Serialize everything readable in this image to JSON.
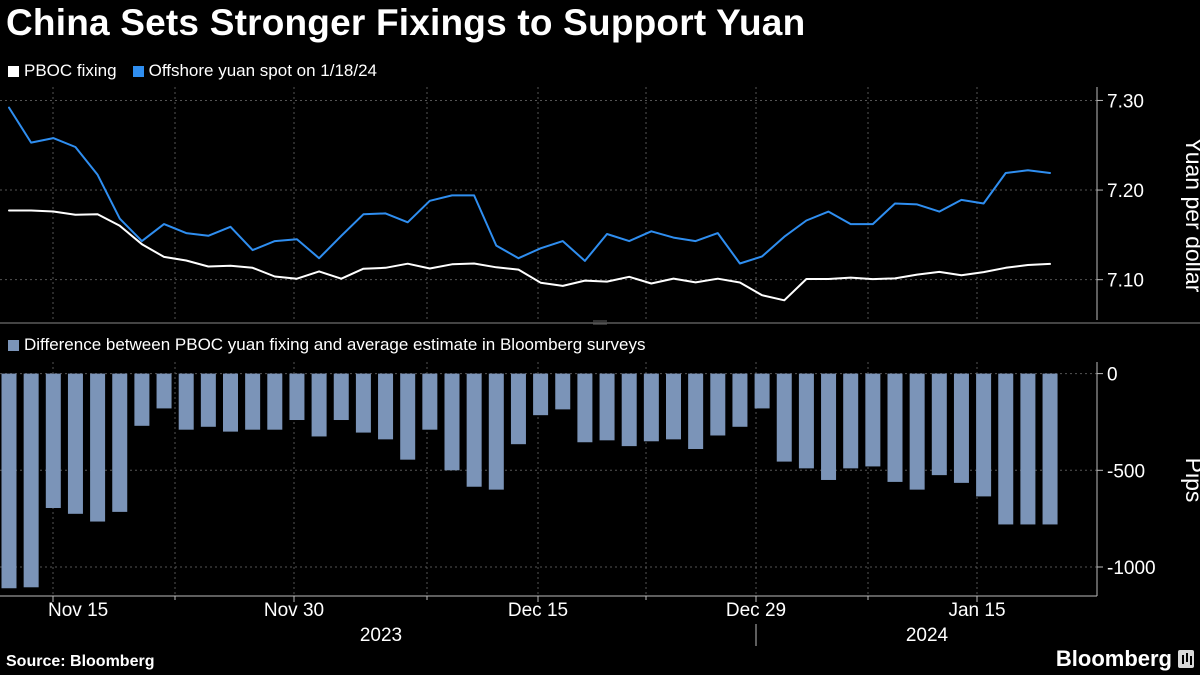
{
  "title": "China Sets Stronger Fixings to Support Yuan",
  "colors": {
    "background": "#000000",
    "pboc_line": "#ffffff",
    "spot_line": "#2f8ef0",
    "bars": "#7b94b8",
    "grid": "#555555",
    "divider": "#444444"
  },
  "chart_data": [
    {
      "type": "line",
      "legend": [
        "PBOC fixing",
        "Offshore yuan spot on 1/18/24"
      ],
      "ylabel": "Yuan per dollar",
      "ylim": [
        7.055,
        7.315
      ],
      "yticks": [
        7.1,
        7.2,
        7.3
      ],
      "ytick_labels": [
        "7.10",
        "7.20",
        "7.30"
      ],
      "x_label": "date",
      "series": [
        {
          "name": "PBOC fixing",
          "color": "#ffffff",
          "values": [
            7.1772,
            7.1772,
            7.1761,
            7.1725,
            7.1731,
            7.1601,
            7.1396,
            7.1254,
            7.1214,
            7.1147,
            7.1155,
            7.1133,
            7.1035,
            7.1011,
            7.1092,
            7.1011,
            7.1123,
            7.1132,
            7.1178,
            7.1125,
            7.1171,
            7.118,
            7.1138,
            7.1112,
            7.0966,
            7.093,
            7.099,
            7.0978,
            7.1032,
            7.0957,
            7.1012,
            7.097,
            7.1011,
            7.0968,
            7.0827,
            7.077,
            7.1007,
            7.1008,
            7.1023,
            7.1006,
            7.1014,
            7.1057,
            7.1087,
            7.1049,
            7.1085,
            7.1133,
            7.1164,
            7.1176
          ]
        },
        {
          "name": "Offshore yuan spot on 1/18/24",
          "color": "#2f8ef0",
          "values": [
            7.292,
            7.253,
            7.258,
            7.248,
            7.217,
            7.168,
            7.143,
            7.162,
            7.152,
            7.149,
            7.159,
            7.133,
            7.143,
            7.145,
            7.124,
            7.149,
            7.173,
            7.174,
            7.164,
            7.188,
            7.194,
            7.194,
            7.138,
            7.124,
            7.135,
            7.143,
            7.121,
            7.151,
            7.143,
            7.154,
            7.147,
            7.143,
            7.152,
            7.118,
            7.126,
            7.148,
            7.166,
            7.176,
            7.162,
            7.162,
            7.185,
            7.184,
            7.176,
            7.189,
            7.185,
            7.219,
            7.222,
            7.219
          ]
        }
      ]
    },
    {
      "type": "bar",
      "legend": [
        "Difference between PBOC yuan fixing and average estimate in Bloomberg surveys"
      ],
      "ylabel": "Pips",
      "ylim": [
        -1150,
        60
      ],
      "yticks": [
        0,
        -500,
        -1000
      ],
      "ytick_labels": [
        "0",
        "-500",
        "-1000"
      ],
      "series": [
        {
          "name": "Difference between PBOC yuan fixing and average estimate in Bloomberg surveys",
          "color": "#7b94b8",
          "values": [
            -1110,
            -1105,
            -695,
            -725,
            -765,
            -715,
            -270,
            -180,
            -290,
            -275,
            -300,
            -290,
            -290,
            -240,
            -325,
            -240,
            -305,
            -340,
            -445,
            -290,
            -500,
            -585,
            -600,
            -365,
            -215,
            -185,
            -355,
            -345,
            -375,
            -350,
            -340,
            -390,
            -320,
            -275,
            -180,
            -455,
            -490,
            -550,
            -490,
            -480,
            -560,
            -600,
            -525,
            -565,
            -635,
            -780,
            -780,
            -780
          ]
        }
      ]
    }
  ],
  "x_axis": {
    "tick_labels": [
      "Nov 15",
      "Nov 30",
      "Dec 15",
      "Dec 29",
      "Jan 15"
    ],
    "year_labels": [
      "2023",
      "2024"
    ]
  },
  "footer": {
    "source": "Source: Bloomberg",
    "brand": "Bloomberg"
  }
}
